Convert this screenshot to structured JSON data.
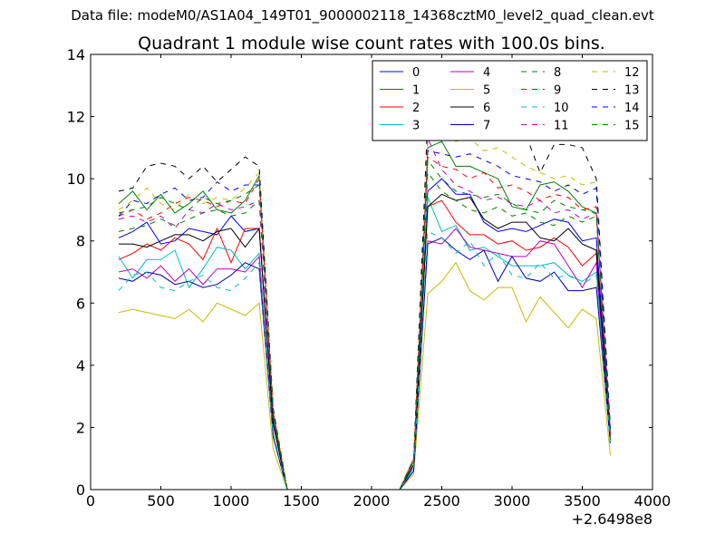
{
  "figure": {
    "suptitle": "Data file: modeM0/AS1A04_149T01_9000002118_14368cztM0_level2_quad_clean.evt"
  },
  "chart_data": {
    "type": "line",
    "title": "Quadrant 1 module wise count rates with 100.0s bins.",
    "xlabel": "",
    "ylabel": "",
    "x_offset_label": "+2.6498e8",
    "xlim": [
      0,
      4000
    ],
    "ylim": [
      0,
      14
    ],
    "xticks": [
      0,
      500,
      1000,
      1500,
      2000,
      2500,
      3000,
      3500,
      4000
    ],
    "yticks": [
      0,
      2,
      4,
      6,
      8,
      10,
      12,
      14
    ],
    "grid": false,
    "legend_position": "top-right",
    "legend_columns": 4,
    "x": [
      200,
      300,
      400,
      500,
      600,
      700,
      800,
      900,
      1000,
      1100,
      1200,
      1300,
      1400,
      1500,
      1600,
      1700,
      1800,
      1900,
      2000,
      2100,
      2200,
      2300,
      2400,
      2500,
      2600,
      2700,
      2800,
      2900,
      3000,
      3100,
      3200,
      3300,
      3400,
      3500,
      3600,
      3700
    ],
    "series": [
      {
        "name": "0",
        "color": "#0000ff",
        "dash": "solid",
        "values": [
          8.1,
          8.3,
          8.6,
          7.9,
          8.0,
          8.4,
          8.3,
          8.2,
          8.8,
          8.3,
          8.4,
          2.2,
          0,
          0,
          0,
          0,
          0,
          0,
          0,
          0,
          0,
          0.7,
          9.6,
          10.0,
          9.5,
          9.5,
          8.6,
          8.3,
          8.4,
          8.3,
          8.5,
          8.7,
          8.6,
          8.0,
          8.1,
          1.6
        ]
      },
      {
        "name": "1",
        "color": "#008000",
        "dash": "solid",
        "values": [
          9.2,
          9.6,
          9.0,
          9.5,
          8.9,
          9.2,
          9.6,
          9.0,
          8.9,
          9.3,
          10.1,
          2.3,
          0,
          0,
          0,
          0,
          0,
          0,
          0,
          0,
          0,
          0.9,
          11.0,
          11.2,
          10.4,
          10.4,
          10.2,
          10.0,
          9.1,
          9.0,
          9.8,
          9.9,
          9.6,
          9.1,
          8.9,
          1.8
        ]
      },
      {
        "name": "2",
        "color": "#ff0000",
        "dash": "solid",
        "values": [
          7.4,
          7.6,
          7.9,
          7.7,
          8.1,
          7.9,
          7.4,
          8.4,
          7.3,
          8.4,
          8.4,
          2.1,
          0,
          0,
          0,
          0,
          0,
          0,
          0,
          0,
          0,
          0.8,
          9.1,
          9.3,
          8.6,
          8.2,
          8.2,
          7.9,
          8.0,
          7.7,
          7.8,
          8.1,
          7.8,
          7.2,
          7.6,
          1.6
        ]
      },
      {
        "name": "3",
        "color": "#00bfbf",
        "dash": "solid",
        "values": [
          7.5,
          6.8,
          7.4,
          7.4,
          7.7,
          6.5,
          7.1,
          7.8,
          7.7,
          7.1,
          7.6,
          1.7,
          0,
          0,
          0,
          0,
          0,
          0,
          0,
          0,
          0,
          0.7,
          9.4,
          8.3,
          8.5,
          7.7,
          7.8,
          7.5,
          7.2,
          7.2,
          7.2,
          7.3,
          6.9,
          6.7,
          7.0,
          1.5
        ]
      },
      {
        "name": "4",
        "color": "#bf00bf",
        "dash": "solid",
        "values": [
          7.0,
          7.1,
          6.8,
          7.2,
          6.7,
          7.1,
          6.6,
          7.1,
          7.1,
          7.0,
          7.5,
          1.7,
          0,
          0,
          0,
          0,
          0,
          0,
          0,
          0,
          0,
          0.6,
          8.0,
          7.9,
          8.4,
          7.8,
          7.7,
          7.6,
          7.5,
          7.5,
          8.0,
          7.9,
          7.2,
          6.5,
          7.3,
          1.5
        ]
      },
      {
        "name": "5",
        "color": "#bfbf00",
        "dash": "solid",
        "values": [
          5.7,
          5.8,
          5.7,
          5.6,
          5.5,
          5.8,
          5.4,
          6.0,
          5.8,
          5.6,
          6.0,
          1.3,
          0,
          0,
          0,
          0,
          0,
          0,
          0,
          0,
          0,
          0.5,
          6.3,
          6.7,
          7.3,
          6.4,
          6.1,
          6.5,
          6.5,
          5.4,
          6.2,
          5.7,
          5.2,
          5.8,
          5.5,
          1.1
        ]
      },
      {
        "name": "6",
        "color": "#000000",
        "dash": "solid",
        "values": [
          7.9,
          7.9,
          7.8,
          8.0,
          8.2,
          8.2,
          8.0,
          8.3,
          8.4,
          7.8,
          8.4,
          2.1,
          0,
          0,
          0,
          0,
          0,
          0,
          0,
          0,
          0,
          0.8,
          9.1,
          9.5,
          9.3,
          9.4,
          8.7,
          8.4,
          8.6,
          8.6,
          8.1,
          8.0,
          8.4,
          7.9,
          7.7,
          1.6
        ]
      },
      {
        "name": "7",
        "color": "#0000aa",
        "dash": "solid",
        "values": [
          6.8,
          6.7,
          7.0,
          6.9,
          6.6,
          6.7,
          6.5,
          6.6,
          6.9,
          7.3,
          7.1,
          1.7,
          0,
          0,
          0,
          0,
          0,
          0,
          0,
          0,
          0,
          0.6,
          7.9,
          8.1,
          7.7,
          7.4,
          7.7,
          6.7,
          7.5,
          6.8,
          6.7,
          7.0,
          6.4,
          6.4,
          6.5,
          1.5
        ]
      },
      {
        "name": "8",
        "color": "#008000",
        "dash": "dashed",
        "values": [
          8.3,
          8.4,
          8.5,
          8.7,
          8.5,
          8.7,
          8.9,
          9.0,
          8.8,
          8.9,
          9.3,
          2.4,
          0,
          0,
          0,
          0,
          0,
          0,
          0,
          0,
          0,
          1.0,
          10.2,
          9.6,
          9.3,
          9.0,
          8.9,
          9.1,
          8.8,
          8.9,
          8.6,
          8.5,
          8.8,
          8.6,
          8.8,
          1.7
        ]
      },
      {
        "name": "9",
        "color": "#ff0000",
        "dash": "dashed",
        "values": [
          8.8,
          9.0,
          8.7,
          8.9,
          9.2,
          9.4,
          9.3,
          9.1,
          9.3,
          9.2,
          10.0,
          2.5,
          0,
          0,
          0,
          0,
          0,
          0,
          0,
          0,
          0,
          1.0,
          10.7,
          10.4,
          10.3,
          10.0,
          10.2,
          9.7,
          9.8,
          9.6,
          9.3,
          9.5,
          9.4,
          9.0,
          9.1,
          1.8
        ]
      },
      {
        "name": "10",
        "color": "#00bfbf",
        "dash": "dashed",
        "values": [
          6.4,
          6.9,
          7.0,
          6.5,
          6.4,
          6.7,
          6.9,
          6.5,
          6.4,
          6.8,
          7.3,
          1.8,
          0,
          0,
          0,
          0,
          0,
          0,
          0,
          0,
          0,
          0.7,
          8.3,
          8.1,
          7.6,
          8.0,
          7.2,
          7.6,
          6.9,
          6.8,
          7.3,
          6.8,
          6.9,
          6.6,
          6.9,
          1.5
        ]
      },
      {
        "name": "11",
        "color": "#bf00bf",
        "dash": "dashed",
        "values": [
          8.7,
          8.8,
          8.6,
          8.8,
          8.4,
          9.0,
          8.9,
          9.2,
          9.0,
          9.1,
          9.3,
          2.4,
          0,
          0,
          0,
          0,
          0,
          0,
          0,
          0,
          0,
          0.9,
          11.3,
          10.3,
          9.8,
          9.6,
          9.3,
          9.4,
          9.2,
          9.1,
          9.3,
          8.9,
          9.0,
          8.7,
          8.9,
          1.8
        ]
      },
      {
        "name": "12",
        "color": "#bfbf00",
        "dash": "dashed",
        "values": [
          9.0,
          9.3,
          9.7,
          9.2,
          9.0,
          9.5,
          9.2,
          9.4,
          9.3,
          9.7,
          10.2,
          2.6,
          0,
          0,
          0,
          0,
          0,
          0,
          0,
          0,
          0,
          1.0,
          11.4,
          11.6,
          11.2,
          11.3,
          10.9,
          11.0,
          10.7,
          10.4,
          10.2,
          10.0,
          10.1,
          9.8,
          9.9,
          1.9
        ]
      },
      {
        "name": "13",
        "color": "#000000",
        "dash": "dashed",
        "values": [
          9.6,
          9.7,
          10.4,
          10.5,
          10.4,
          10.0,
          10.4,
          9.9,
          10.3,
          10.7,
          10.4,
          2.6,
          0,
          0,
          0,
          0,
          0,
          0,
          0,
          0,
          0,
          1.0,
          12.0,
          12.2,
          11.5,
          11.4,
          11.5,
          11.3,
          11.4,
          11.4,
          10.2,
          11.1,
          11.1,
          11.0,
          10.0,
          2.0
        ]
      },
      {
        "name": "14",
        "color": "#0000ff",
        "dash": "dashed",
        "values": [
          8.8,
          9.3,
          9.2,
          9.5,
          9.7,
          9.3,
          9.4,
          9.9,
          9.6,
          9.8,
          9.8,
          2.5,
          0,
          0,
          0,
          0,
          0,
          0,
          0,
          0,
          0,
          1.0,
          10.9,
          10.8,
          10.7,
          10.8,
          10.6,
          10.4,
          10.1,
          10.0,
          9.9,
          9.6,
          9.8,
          9.5,
          9.7,
          1.9
        ]
      },
      {
        "name": "15",
        "color": "#008000",
        "dash": "dashed",
        "values": [
          8.9,
          9.0,
          9.1,
          9.4,
          9.2,
          9.0,
          9.4,
          9.2,
          9.3,
          9.5,
          9.8,
          2.5,
          0,
          0,
          0,
          0,
          0,
          0,
          0,
          0,
          0,
          1.0,
          10.6,
          10.0,
          9.6,
          9.5,
          9.4,
          9.5,
          9.2,
          9.0,
          8.9,
          9.3,
          9.1,
          9.0,
          8.9,
          1.8
        ]
      }
    ]
  }
}
